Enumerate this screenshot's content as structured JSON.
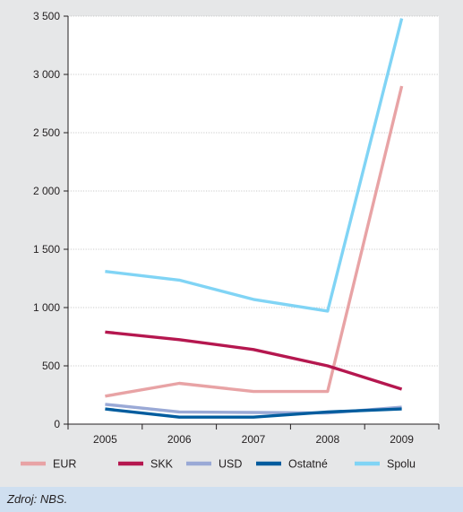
{
  "chart_data": {
    "type": "line",
    "title": "",
    "xlabel": "",
    "ylabel": "",
    "categories": [
      "2005",
      "2006",
      "2007",
      "2008",
      "2009"
    ],
    "ylim": [
      0,
      3500
    ],
    "yticks": [
      0,
      500,
      1000,
      1500,
      2000,
      2500,
      3000,
      3500
    ],
    "ytick_labels": [
      "0",
      "500",
      "1 000",
      "1 500",
      "2 000",
      "2 500",
      "3 000",
      "3 500"
    ],
    "grid": "horizontal",
    "legend_position": "bottom",
    "series": [
      {
        "name": "EUR",
        "color": "#e8a3a5",
        "values": [
          240,
          350,
          280,
          280,
          2900
        ]
      },
      {
        "name": "SKK",
        "color": "#b5174f",
        "values": [
          790,
          725,
          640,
          500,
          300
        ]
      },
      {
        "name": "USD",
        "color": "#9aa9d6",
        "values": [
          170,
          105,
          100,
          95,
          145
        ]
      },
      {
        "name": "Ostatné",
        "color": "#005c9e",
        "values": [
          130,
          60,
          60,
          105,
          130
        ]
      },
      {
        "name": "Spolu",
        "color": "#80d4f5",
        "values": [
          1310,
          1235,
          1070,
          970,
          3480
        ]
      }
    ]
  },
  "source": {
    "text": "Zdroj: NBS."
  }
}
